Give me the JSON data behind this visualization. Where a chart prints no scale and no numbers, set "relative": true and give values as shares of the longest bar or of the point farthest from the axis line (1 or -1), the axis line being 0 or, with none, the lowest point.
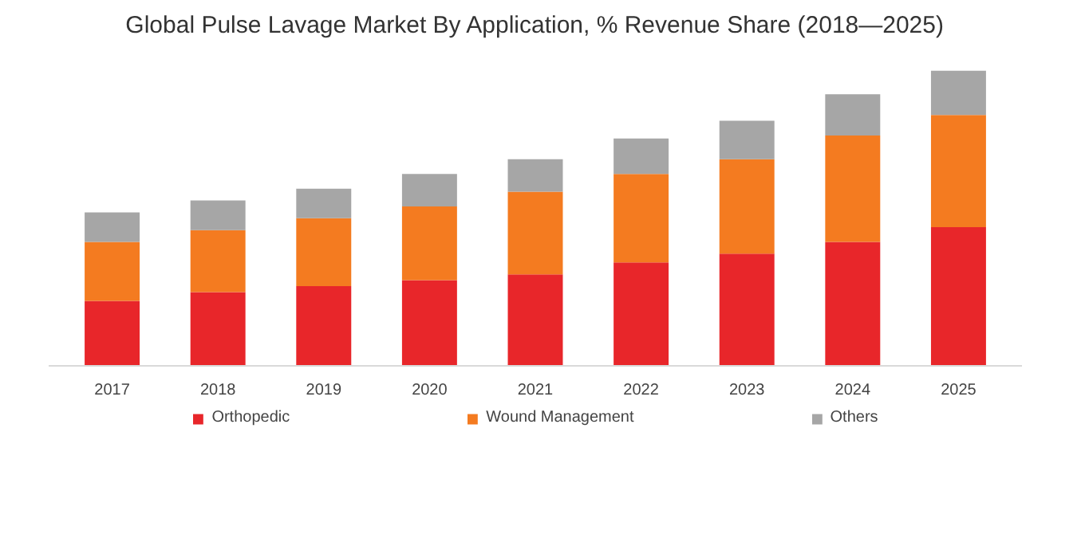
{
  "chart_data": {
    "type": "bar",
    "title": "Global Pulse Lavage Market By Application, % Revenue Share (2018—2025)",
    "categories": [
      "2017",
      "2018",
      "2019",
      "2020",
      "2021",
      "2022",
      "2023",
      "2024",
      "2025"
    ],
    "stacked": true,
    "relative": true,
    "legend": "bottom",
    "grid": false,
    "series": [
      {
        "name": "Orthopedic",
        "color": "#e8262a",
        "values": [
          0.22,
          0.25,
          0.27,
          0.29,
          0.31,
          0.35,
          0.38,
          0.42,
          0.47
        ]
      },
      {
        "name": "Wound Management",
        "color": "#f47b20",
        "values": [
          0.2,
          0.21,
          0.23,
          0.25,
          0.28,
          0.3,
          0.32,
          0.36,
          0.38
        ]
      },
      {
        "name": "Others",
        "color": "#a6a6a6",
        "values": [
          0.1,
          0.1,
          0.1,
          0.11,
          0.11,
          0.12,
          0.13,
          0.14,
          0.15
        ]
      }
    ]
  }
}
